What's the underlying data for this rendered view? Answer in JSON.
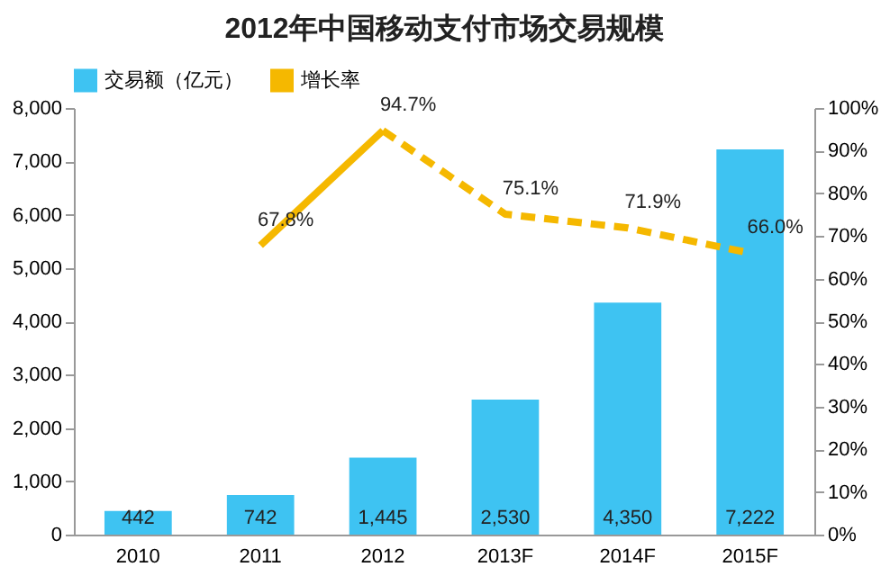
{
  "chart_data": {
    "type": "bar",
    "title": "2012年中国移动支付市场交易规模",
    "categories": [
      "2010",
      "2011",
      "2012",
      "2013F",
      "2014F",
      "2015F"
    ],
    "series": [
      {
        "name": "交易额（亿元）",
        "color": "#3ec3f2",
        "values": [
          442,
          742,
          1445,
          2530,
          4350,
          7222
        ],
        "value_labels": [
          "442",
          "742",
          "1,445",
          "2,530",
          "4,350",
          "7,222"
        ]
      },
      {
        "name": "增长率",
        "type": "line",
        "axis": "y2",
        "color": "#f5b800",
        "line_style": "solid",
        "values": [
          null,
          67.8,
          94.7,
          null,
          null,
          null
        ],
        "value_labels": [
          null,
          "67.8%",
          "94.7%",
          null,
          null,
          null
        ]
      },
      {
        "type": "line",
        "axis": "y2",
        "color": "#f5b800",
        "line_style": "dashed",
        "values": [
          null,
          null,
          94.7,
          75.1,
          71.9,
          66.0
        ],
        "value_labels": [
          null,
          null,
          null,
          "75.1%",
          "71.9%",
          "66.0%"
        ]
      }
    ],
    "ylim": [
      0,
      8000
    ],
    "yticks": [
      {
        "value": 0,
        "label": "0"
      },
      {
        "value": 1000,
        "label": "1,000"
      },
      {
        "value": 2000,
        "label": "2,000"
      },
      {
        "value": 3000,
        "label": "3,000"
      },
      {
        "value": 4000,
        "label": "4,000"
      },
      {
        "value": 5000,
        "label": "5,000"
      },
      {
        "value": 6000,
        "label": "6,000"
      },
      {
        "value": 7000,
        "label": "7,000"
      },
      {
        "value": 8000,
        "label": "8,000"
      }
    ],
    "y2lim": [
      0,
      100
    ],
    "y2ticks": [
      {
        "value": 0,
        "label": "0%"
      },
      {
        "value": 10,
        "label": "10%"
      },
      {
        "value": 20,
        "label": "20%"
      },
      {
        "value": 30,
        "label": "30%"
      },
      {
        "value": 40,
        "label": "40%"
      },
      {
        "value": 50,
        "label": "50%"
      },
      {
        "value": 60,
        "label": "60%"
      },
      {
        "value": 70,
        "label": "70%"
      },
      {
        "value": 80,
        "label": "80%"
      },
      {
        "value": 90,
        "label": "90%"
      },
      {
        "value": 100,
        "label": "100%"
      }
    ],
    "legend": "top",
    "marker": "none",
    "grid": false
  }
}
